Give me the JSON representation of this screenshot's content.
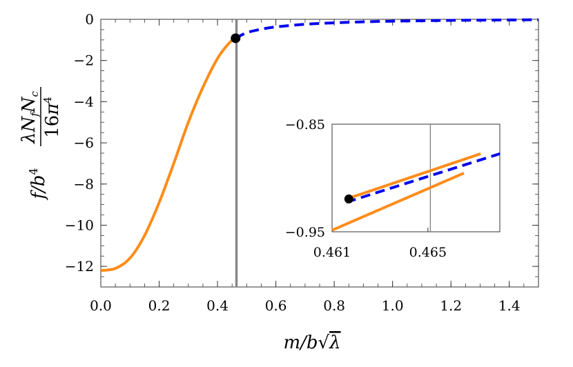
{
  "chart_data": [
    {
      "type": "line",
      "xlabel": "m/b√λ",
      "ylabel": "f/b⁴ λN_f N_c / 16π⁴",
      "xlim": [
        0,
        1.5
      ],
      "ylim": [
        -13,
        0
      ],
      "x_ticks": [
        "0.0",
        "0.2",
        "0.4",
        "0.6",
        "0.8",
        "1.0",
        "1.2",
        "1.4"
      ],
      "x_tick_values": [
        0,
        0.2,
        0.4,
        0.6,
        0.8,
        1.0,
        1.2,
        1.4
      ],
      "y_ticks": [
        "0",
        "−2",
        "−4",
        "−6",
        "−8",
        "−10",
        "−12"
      ],
      "y_tick_values": [
        0,
        -2,
        -4,
        -6,
        -8,
        -10,
        -12
      ],
      "grid": false,
      "vertical_line_x": 0.465,
      "series": [
        {
          "color": "#ff8c1a",
          "style": "solid",
          "x": [
            0.0,
            0.05,
            0.1,
            0.15,
            0.2,
            0.25,
            0.3,
            0.35,
            0.4,
            0.44,
            0.462
          ],
          "y": [
            -12.2,
            -12.1,
            -11.6,
            -10.5,
            -8.9,
            -7.0,
            -5.0,
            -3.3,
            -1.9,
            -1.15,
            -0.92
          ]
        },
        {
          "color": "#0000ee",
          "style": "dashed",
          "x": [
            0.462,
            0.5,
            0.55,
            0.6,
            0.7,
            0.8,
            0.9,
            1.0,
            1.1,
            1.2,
            1.3,
            1.4,
            1.5
          ],
          "y": [
            -0.92,
            -0.65,
            -0.48,
            -0.37,
            -0.24,
            -0.17,
            -0.12,
            -0.09,
            -0.07,
            -0.05,
            -0.04,
            -0.03,
            -0.02
          ]
        }
      ],
      "points": [
        {
          "x": 0.462,
          "y": -0.92
        }
      ]
    },
    {
      "type": "line",
      "xlim": [
        0.461,
        0.468
      ],
      "ylim": [
        -0.95,
        -0.85
      ],
      "x_ticks": [
        "0.461",
        "0.465"
      ],
      "x_tick_values": [
        0.461,
        0.465
      ],
      "y_ticks": [
        "−0.85",
        "−0.95"
      ],
      "y_tick_values": [
        -0.85,
        -0.95
      ],
      "vertical_line_x": 0.4651,
      "series": [
        {
          "color": "#ff8c1a",
          "style": "solid",
          "x": [
            0.461,
            0.4665
          ],
          "y": [
            -0.9485,
            -0.8955
          ]
        },
        {
          "color": "#ff8c1a",
          "style": "solid",
          "x": [
            0.4616,
            0.4672
          ],
          "y": [
            -0.9195,
            -0.8775
          ]
        },
        {
          "color": "#0000ee",
          "style": "dashed",
          "x": [
            0.4616,
            0.468
          ],
          "y": [
            -0.9225,
            -0.8775
          ]
        }
      ],
      "points": [
        {
          "x": 0.4617,
          "y": -0.9195
        }
      ]
    }
  ]
}
